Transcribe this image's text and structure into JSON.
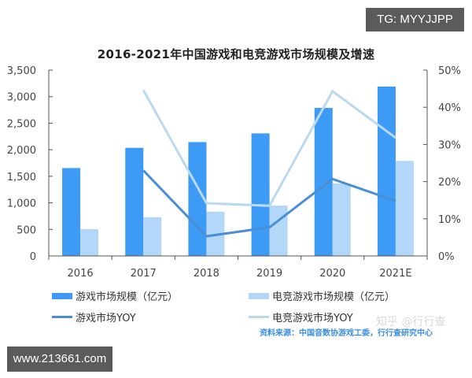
{
  "badges": {
    "top_right": "TG: MYYJJPP",
    "bottom_left": "www.213661.com"
  },
  "colors": {
    "game_bar": "#3D9BF5",
    "esports_bar": "#B3D7F8",
    "game_yoy_line": "#4A8ED6",
    "esports_yoy_line": "#B9D9EE",
    "source_text": "#3B8FE0"
  },
  "legend": {
    "game_market": "游戏市场规模（亿元）",
    "esports_market": "电竞游戏市场规模（亿元）",
    "game_yoy": "游戏市场YOY",
    "esports_yoy": "电竞游戏市场YOY"
  },
  "source": "资料来源：中国音数协游戏工委，行行查研究中心",
  "watermark": "知乎 @行行查",
  "chart_data": {
    "type": "bar",
    "title": "2016-2021年中国游戏和电竞游戏市场规模及增速",
    "categories": [
      "2016",
      "2017",
      "2018",
      "2019",
      "2020",
      "2021E"
    ],
    "series": [
      {
        "name": "游戏市场规模（亿元）",
        "type": "bar",
        "axis": "left",
        "values": [
          1655,
          2036,
          2144,
          2308,
          2787,
          3190
        ]
      },
      {
        "name": "电竞游戏市场规模（亿元）",
        "type": "bar",
        "axis": "left",
        "values": [
          505,
          730,
          834,
          947,
          1366,
          1790
        ]
      },
      {
        "name": "游戏市场YOY",
        "type": "line",
        "axis": "right",
        "values": [
          null,
          23.0,
          5.3,
          7.7,
          20.7,
          14.8
        ]
      },
      {
        "name": "电竞游戏市场YOY",
        "type": "line",
        "axis": "right",
        "values": [
          null,
          44.6,
          14.2,
          13.5,
          44.3,
          31.8
        ]
      }
    ],
    "ylabel_left": "",
    "ylabel_right": "",
    "ylim_left": [
      0,
      3500
    ],
    "ylim_right": [
      0,
      50
    ],
    "yticks_left": [
      "0",
      "500",
      "1,000",
      "1,500",
      "2,000",
      "2,500",
      "3,000",
      "3,500"
    ],
    "yticks_right": [
      "0%",
      "10%",
      "20%",
      "30%",
      "40%",
      "50%"
    ],
    "grid": false,
    "legend_position": "bottom"
  }
}
